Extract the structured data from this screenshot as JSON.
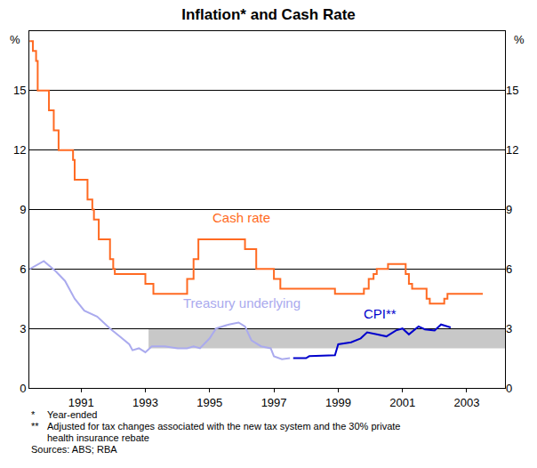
{
  "chart_data": {
    "type": "line",
    "title": "Inflation* and Cash Rate",
    "y_label": "%",
    "y2_label": "%",
    "xlim": [
      1989.39,
      2004.19
    ],
    "xticks": [
      1991,
      1993,
      1995,
      1997,
      1999,
      2001,
      2003
    ],
    "ylim": [
      0,
      18
    ],
    "yticks": [
      0,
      3,
      6,
      9,
      12,
      15
    ],
    "y2lim": [
      0,
      18
    ],
    "y2ticks": [
      0,
      3,
      6,
      9,
      12,
      15
    ],
    "grid": true,
    "target_band": {
      "x": [
        1993.1,
        2004.19
      ],
      "y": [
        2,
        3
      ],
      "color": "#c8c8c8"
    },
    "series": [
      {
        "name": "Cash rate",
        "color": "#ff6a22",
        "line_style": "step",
        "label_at": [
          1996.0,
          8.6
        ],
        "x": [
          1989.4,
          1989.5,
          1989.6,
          1989.65,
          1990.0,
          1990.15,
          1990.3,
          1990.75,
          1990.8,
          1991.2,
          1991.35,
          1991.4,
          1991.55,
          1991.9,
          1992.0,
          1992.05,
          1993.0,
          1993.25,
          1994.3,
          1994.5,
          1994.65,
          1996.1,
          1996.45,
          1997.0,
          1997.2,
          1998.9,
          1999.8,
          1999.95,
          2000.1,
          2000.2,
          2000.55,
          2001.1,
          2001.2,
          2001.3,
          2001.75,
          2001.85,
          2002.3,
          2002.4,
          2003.5
        ],
        "values": [
          17.5,
          17.0,
          16.5,
          15.0,
          14.0,
          13.0,
          12.0,
          11.5,
          10.5,
          9.5,
          9.0,
          8.5,
          7.5,
          6.5,
          6.0,
          5.75,
          5.25,
          4.75,
          5.5,
          6.5,
          7.5,
          7.0,
          6.0,
          5.5,
          5.0,
          4.75,
          5.0,
          5.5,
          5.75,
          6.0,
          6.25,
          5.75,
          5.25,
          5.0,
          4.5,
          4.25,
          4.5,
          4.75,
          4.75
        ]
      },
      {
        "name": "Treasury underlying",
        "color": "#aaaaee",
        "line_style": "solid",
        "label_at": [
          1996.0,
          4.3
        ],
        "x": [
          1989.4,
          1989.84,
          1990.2,
          1990.5,
          1990.8,
          1991.1,
          1991.5,
          1991.9,
          1992.2,
          1992.5,
          1992.6,
          1992.8,
          1993.0,
          1993.2,
          1993.6,
          1994.0,
          1994.3,
          1994.5,
          1994.7,
          1995.0,
          1995.2,
          1995.6,
          1995.9,
          1996.1,
          1996.3,
          1996.6,
          1996.9,
          1997.0,
          1997.25,
          1997.5
        ],
        "values": [
          6.0,
          6.4,
          5.9,
          5.4,
          4.5,
          3.9,
          3.6,
          3.0,
          2.6,
          2.2,
          1.9,
          2.0,
          1.8,
          2.1,
          2.1,
          2.0,
          2.0,
          2.1,
          2.0,
          2.5,
          3.0,
          3.2,
          3.3,
          3.1,
          2.4,
          2.1,
          2.0,
          1.6,
          1.45,
          1.5
        ]
      },
      {
        "name": "CPI**",
        "color": "#0000cc",
        "line_style": "solid",
        "label_at": [
          2000.3,
          3.75
        ],
        "x": [
          1997.6,
          1998.0,
          1998.1,
          1998.9,
          1999.0,
          1999.4,
          1999.7,
          1999.9,
          2000.2,
          2000.5,
          2000.8,
          2001.0,
          2001.2,
          2001.5,
          2001.7,
          2002.0,
          2002.2,
          2002.5
        ],
        "values": [
          1.5,
          1.5,
          1.6,
          1.65,
          2.2,
          2.3,
          2.5,
          2.8,
          2.7,
          2.6,
          2.9,
          3.0,
          2.7,
          3.1,
          2.95,
          2.9,
          3.2,
          3.05
        ]
      }
    ],
    "footnotes": [
      {
        "mark": "*",
        "lines": [
          "Year-ended"
        ]
      },
      {
        "mark": "**",
        "lines": [
          "Adjusted for tax changes associated with the new tax system and the 30% private",
          "health insurance rebate"
        ]
      }
    ],
    "sources": "Sources: ABS; RBA"
  }
}
